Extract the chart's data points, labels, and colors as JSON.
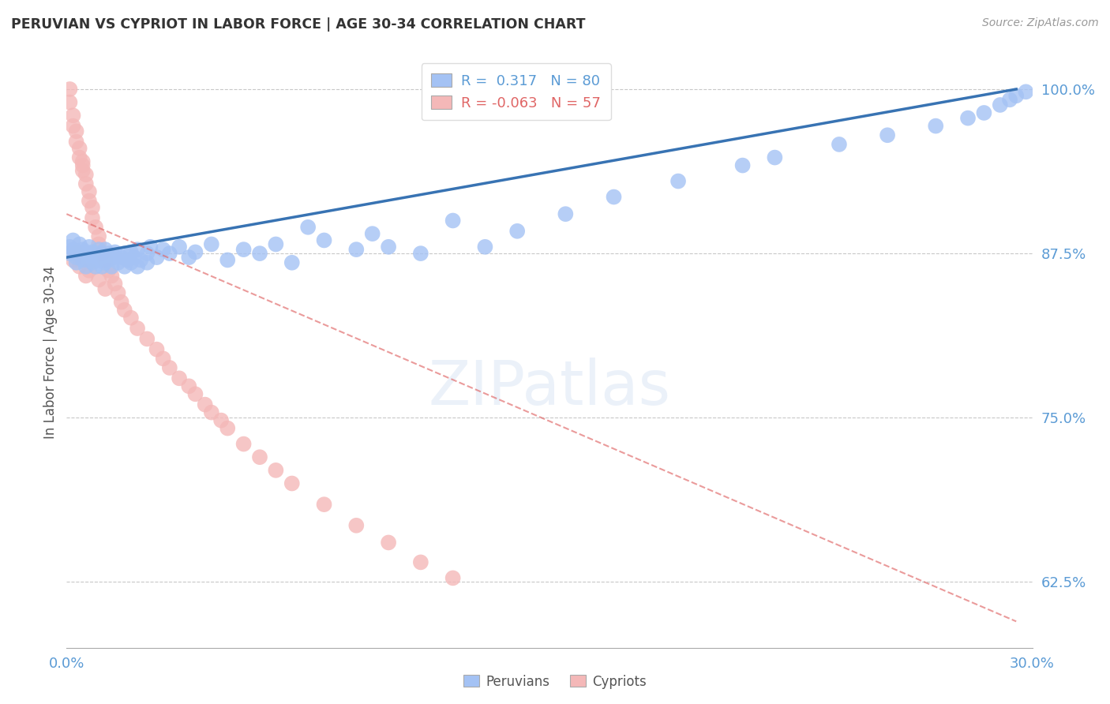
{
  "title": "PERUVIAN VS CYPRIOT IN LABOR FORCE | AGE 30-34 CORRELATION CHART",
  "source_text": "Source: ZipAtlas.com",
  "ylabel": "In Labor Force | Age 30-34",
  "xlim": [
    0.0,
    0.3
  ],
  "ylim": [
    0.575,
    1.025
  ],
  "xticks": [
    0.0,
    0.05,
    0.1,
    0.15,
    0.2,
    0.25,
    0.3
  ],
  "xticklabels": [
    "0.0%",
    "",
    "",
    "",
    "",
    "",
    "30.0%"
  ],
  "ytick_positions": [
    0.625,
    0.75,
    0.875,
    1.0
  ],
  "ytick_labels": [
    "62.5%",
    "75.0%",
    "87.5%",
    "100.0%"
  ],
  "peruvian_color": "#a4c2f4",
  "cypriot_color": "#f4b8b8",
  "peruvian_line_color": "#3873b3",
  "cypriot_line_color": "#e06666",
  "legend_box_color_peruvian": "#a4c2f4",
  "legend_box_color_cypriot": "#f4b8b8",
  "R_peruvian": "0.317",
  "N_peruvian": 80,
  "R_cypriot": "-0.063",
  "N_cypriot": 57,
  "peruvian_line_x0": 0.0,
  "peruvian_line_y0": 0.872,
  "peruvian_line_x1": 0.295,
  "peruvian_line_y1": 1.0,
  "cypriot_line_x0": 0.0,
  "cypriot_line_y0": 0.905,
  "cypriot_line_x1": 0.295,
  "cypriot_line_y1": 0.595,
  "peruvian_x": [
    0.001,
    0.001,
    0.002,
    0.002,
    0.003,
    0.003,
    0.004,
    0.004,
    0.005,
    0.005,
    0.006,
    0.006,
    0.007,
    0.007,
    0.007,
    0.008,
    0.008,
    0.009,
    0.009,
    0.01,
    0.01,
    0.01,
    0.011,
    0.011,
    0.012,
    0.012,
    0.013,
    0.013,
    0.014,
    0.015,
    0.015,
    0.016,
    0.017,
    0.018,
    0.018,
    0.019,
    0.02,
    0.02,
    0.021,
    0.022,
    0.022,
    0.023,
    0.025,
    0.025,
    0.026,
    0.028,
    0.03,
    0.032,
    0.035,
    0.038,
    0.04,
    0.045,
    0.05,
    0.055,
    0.06,
    0.065,
    0.07,
    0.075,
    0.08,
    0.09,
    0.095,
    0.1,
    0.11,
    0.12,
    0.13,
    0.14,
    0.155,
    0.17,
    0.19,
    0.21,
    0.22,
    0.24,
    0.255,
    0.27,
    0.28,
    0.285,
    0.29,
    0.293,
    0.295,
    0.298
  ],
  "peruvian_y": [
    0.88,
    0.875,
    0.878,
    0.885,
    0.872,
    0.868,
    0.876,
    0.882,
    0.87,
    0.878,
    0.865,
    0.874,
    0.88,
    0.87,
    0.875,
    0.868,
    0.876,
    0.872,
    0.865,
    0.878,
    0.87,
    0.875,
    0.865,
    0.872,
    0.868,
    0.878,
    0.875,
    0.87,
    0.865,
    0.872,
    0.876,
    0.868,
    0.872,
    0.865,
    0.875,
    0.87,
    0.876,
    0.868,
    0.872,
    0.865,
    0.878,
    0.87,
    0.875,
    0.868,
    0.88,
    0.872,
    0.878,
    0.875,
    0.88,
    0.872,
    0.876,
    0.882,
    0.87,
    0.878,
    0.875,
    0.882,
    0.868,
    0.895,
    0.885,
    0.878,
    0.89,
    0.88,
    0.875,
    0.9,
    0.88,
    0.892,
    0.905,
    0.918,
    0.93,
    0.942,
    0.948,
    0.958,
    0.965,
    0.972,
    0.978,
    0.982,
    0.988,
    0.992,
    0.995,
    0.998
  ],
  "cypriot_x": [
    0.001,
    0.001,
    0.002,
    0.002,
    0.003,
    0.003,
    0.004,
    0.004,
    0.005,
    0.005,
    0.005,
    0.006,
    0.006,
    0.007,
    0.007,
    0.008,
    0.008,
    0.009,
    0.01,
    0.01,
    0.011,
    0.012,
    0.013,
    0.014,
    0.015,
    0.016,
    0.017,
    0.018,
    0.02,
    0.022,
    0.025,
    0.028,
    0.03,
    0.032,
    0.035,
    0.038,
    0.04,
    0.043,
    0.045,
    0.048,
    0.05,
    0.055,
    0.06,
    0.065,
    0.07,
    0.08,
    0.09,
    0.1,
    0.11,
    0.12,
    0.002,
    0.003,
    0.004,
    0.006,
    0.007,
    0.01,
    0.012
  ],
  "cypriot_y": [
    1.0,
    0.99,
    0.98,
    0.972,
    0.968,
    0.96,
    0.955,
    0.948,
    0.942,
    0.938,
    0.945,
    0.935,
    0.928,
    0.922,
    0.915,
    0.91,
    0.902,
    0.895,
    0.888,
    0.882,
    0.875,
    0.87,
    0.862,
    0.858,
    0.852,
    0.845,
    0.838,
    0.832,
    0.826,
    0.818,
    0.81,
    0.802,
    0.795,
    0.788,
    0.78,
    0.774,
    0.768,
    0.76,
    0.754,
    0.748,
    0.742,
    0.73,
    0.72,
    0.71,
    0.7,
    0.684,
    0.668,
    0.655,
    0.64,
    0.628,
    0.87,
    0.875,
    0.865,
    0.858,
    0.862,
    0.855,
    0.848
  ]
}
